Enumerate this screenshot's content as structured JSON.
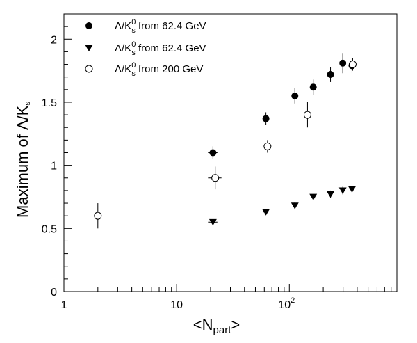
{
  "chart_data": {
    "type": "scatter",
    "xscale": "log",
    "xlim": [
      1,
      900
    ],
    "ylim": [
      0,
      2.2
    ],
    "xlabel": {
      "main": "<N",
      "sub": "part",
      "end": ">"
    },
    "ylabel": {
      "main": "Maximum of Λ/K",
      "sub": "s"
    },
    "x_ticks": [
      {
        "value": 1,
        "label": "1"
      },
      {
        "value": 10,
        "label": "10"
      }
    ],
    "x_tick_pow": {
      "value": 100,
      "base": "10",
      "exp": "2"
    },
    "y_ticks": [
      {
        "value": 0,
        "label": "0"
      },
      {
        "value": 0.5,
        "label": "0.5"
      },
      {
        "value": 1,
        "label": "1"
      },
      {
        "value": 1.5,
        "label": "1.5"
      },
      {
        "value": 2,
        "label": "2"
      }
    ],
    "legend_position": "top-left",
    "series": [
      {
        "name": {
          "pre": "Λ/K",
          "sub": "s",
          "sup": "0",
          "post": " from 62.4 GeV"
        },
        "marker": "filled-circle",
        "points": [
          {
            "x": 21,
            "y": 1.1,
            "yerr": 0.05,
            "xerr": 2
          },
          {
            "x": 62,
            "y": 1.37,
            "yerr": 0.05,
            "xerr": 3
          },
          {
            "x": 112,
            "y": 1.55,
            "yerr": 0.06,
            "xerr": 0
          },
          {
            "x": 163,
            "y": 1.62,
            "yerr": 0.06,
            "xerr": 0
          },
          {
            "x": 232,
            "y": 1.72,
            "yerr": 0.06,
            "xerr": 0
          },
          {
            "x": 298,
            "y": 1.81,
            "yerr": 0.08,
            "xerr": 0
          },
          {
            "x": 360,
            "y": 1.79,
            "yerr": 0.06,
            "xerr": 0
          }
        ]
      },
      {
        "name": {
          "pre": "Λ̄/K",
          "sub": "s",
          "sup": "0",
          "post": " from 62.4 GeV"
        },
        "marker": "filled-triangle-down",
        "points": [
          {
            "x": 21,
            "y": 0.55,
            "yerr": 0.01,
            "xerr": 2
          },
          {
            "x": 62,
            "y": 0.63,
            "yerr": 0.02,
            "xerr": 3
          },
          {
            "x": 112,
            "y": 0.68,
            "yerr": 0.03,
            "xerr": 0
          },
          {
            "x": 163,
            "y": 0.75,
            "yerr": 0.02,
            "xerr": 0
          },
          {
            "x": 232,
            "y": 0.77,
            "yerr": 0.03,
            "xerr": 0
          },
          {
            "x": 298,
            "y": 0.8,
            "yerr": 0.03,
            "xerr": 0
          },
          {
            "x": 360,
            "y": 0.81,
            "yerr": 0.03,
            "xerr": 0
          }
        ]
      },
      {
        "name": {
          "pre": "Λ/K",
          "sub": "s",
          "sup": "0",
          "post": " from 200 GeV"
        },
        "marker": "open-circle",
        "points": [
          {
            "x": 2,
            "y": 0.6,
            "yerr": 0.1,
            "xerr": 0
          },
          {
            "x": 22,
            "y": 0.9,
            "yerr": 0.09,
            "xerr": 3
          },
          {
            "x": 64,
            "y": 1.15,
            "yerr": 0.05,
            "xerr": 0
          },
          {
            "x": 145,
            "y": 1.4,
            "yerr": 0.1,
            "xerr": 0
          },
          {
            "x": 365,
            "y": 1.8,
            "yerr": 0.05,
            "xerr": 0
          }
        ]
      }
    ]
  }
}
